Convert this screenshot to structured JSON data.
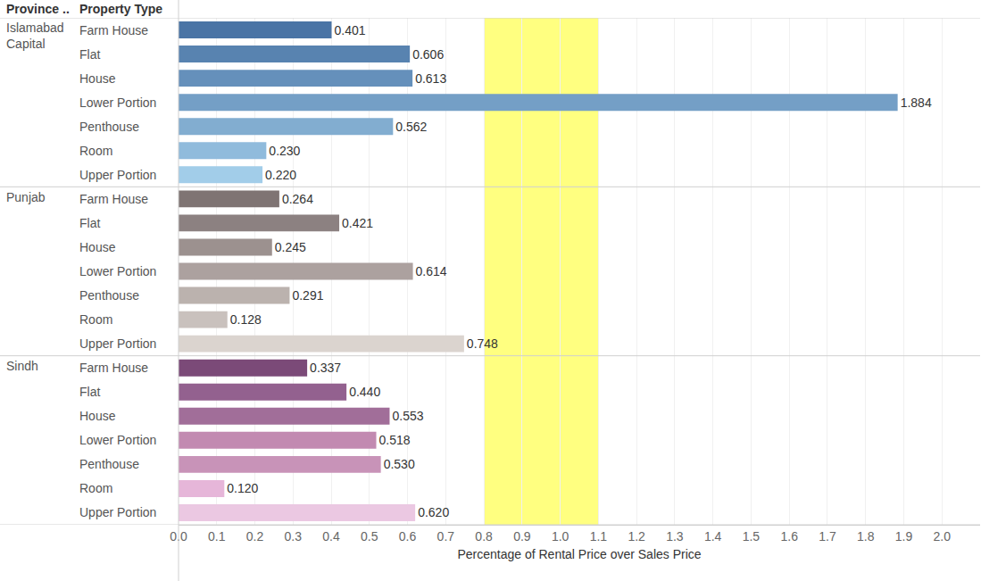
{
  "chart_data": {
    "type": "bar",
    "orientation": "horizontal",
    "x_label": "Percentage of Rental Price over Sales Price",
    "column_headers": [
      "Province ..",
      "Property Type"
    ],
    "groups": [
      {
        "name": "Islamabad Capital",
        "categories": [
          "Farm House",
          "Flat",
          "House",
          "Lower Portion",
          "Penthouse",
          "Room",
          "Upper Portion"
        ],
        "values": [
          0.401,
          0.606,
          0.613,
          1.884,
          0.562,
          0.23,
          0.22
        ],
        "value_labels": [
          "0.401",
          "0.606",
          "0.613",
          "1.884",
          "0.562",
          "0.230",
          "0.220"
        ],
        "colors": [
          "#4a74a5",
          "#5883b0",
          "#6590bb",
          "#749fc6",
          "#82add0",
          "#90bbdc",
          "#a2cde9"
        ]
      },
      {
        "name": "Punjab",
        "categories": [
          "Farm House",
          "Flat",
          "House",
          "Lower Portion",
          "Penthouse",
          "Room",
          "Upper Portion"
        ],
        "values": [
          0.264,
          0.421,
          0.245,
          0.614,
          0.291,
          0.128,
          0.748
        ],
        "value_labels": [
          "0.264",
          "0.421",
          "0.245",
          "0.614",
          "0.291",
          "0.128",
          "0.748"
        ],
        "colors": [
          "#7f7473",
          "#8c8181",
          "#9c918f",
          "#aca19f",
          "#bbb2ae",
          "#c9c1bd",
          "#dbd4cf"
        ]
      },
      {
        "name": "Sindh",
        "categories": [
          "Farm House",
          "Flat",
          "House",
          "Lower Portion",
          "Penthouse",
          "Room",
          "Upper Portion"
        ],
        "values": [
          0.337,
          0.44,
          0.553,
          0.518,
          0.53,
          0.12,
          0.62
        ],
        "value_labels": [
          "0.337",
          "0.440",
          "0.553",
          "0.518",
          "0.530",
          "0.120",
          "0.620"
        ],
        "colors": [
          "#7b4a78",
          "#93618f",
          "#a16e99",
          "#c28ab1",
          "#c893b8",
          "#e6b6d9",
          "#ebc8e2"
        ]
      }
    ],
    "xlim": [
      0,
      2.1
    ],
    "xticks": [
      {
        "value": 0,
        "label": "0.0"
      },
      0.1,
      0.2,
      0.3,
      0.4,
      0.5,
      0.6,
      0.7,
      0.8,
      0.9,
      {
        "value": 1,
        "label": "1.0"
      },
      1.1,
      1.2,
      1.3,
      1.4,
      1.5,
      1.6,
      1.7,
      1.8,
      1.9,
      {
        "value": 2,
        "label": "2.0"
      }
    ],
    "grid": true,
    "data_labels": true,
    "highlight_band": [
      0.8,
      1.1
    ],
    "highlight_color": "#ffff80"
  }
}
